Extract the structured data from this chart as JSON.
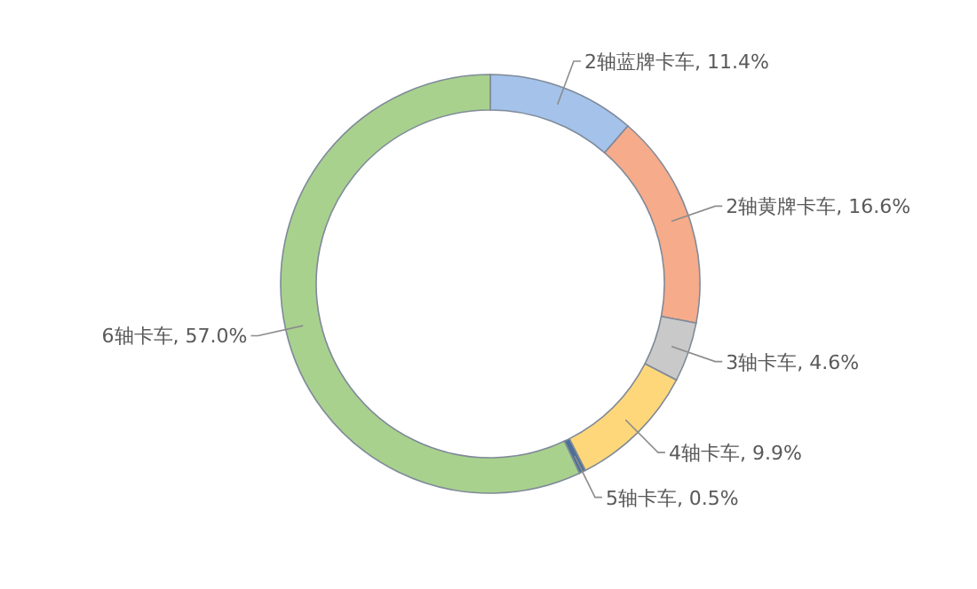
{
  "chart_data": {
    "type": "donut",
    "categories": [
      "2轴蓝牌卡车",
      "2轴黄牌卡车",
      "3轴卡车",
      "4轴卡车",
      "5轴卡车",
      "6轴卡车"
    ],
    "values": [
      11.4,
      16.6,
      4.6,
      9.9,
      0.5,
      57.0
    ],
    "colors": [
      "#a4c2ea",
      "#f6ab8a",
      "#c9c9c9",
      "#fed77a",
      "#4d6f96",
      "#a9d18e"
    ],
    "value_labels": [
      ", 11.4%",
      ", 16.6%",
      ", 4.6%",
      ", 9.9%",
      ", 0.5%",
      ", 57.0%"
    ]
  }
}
